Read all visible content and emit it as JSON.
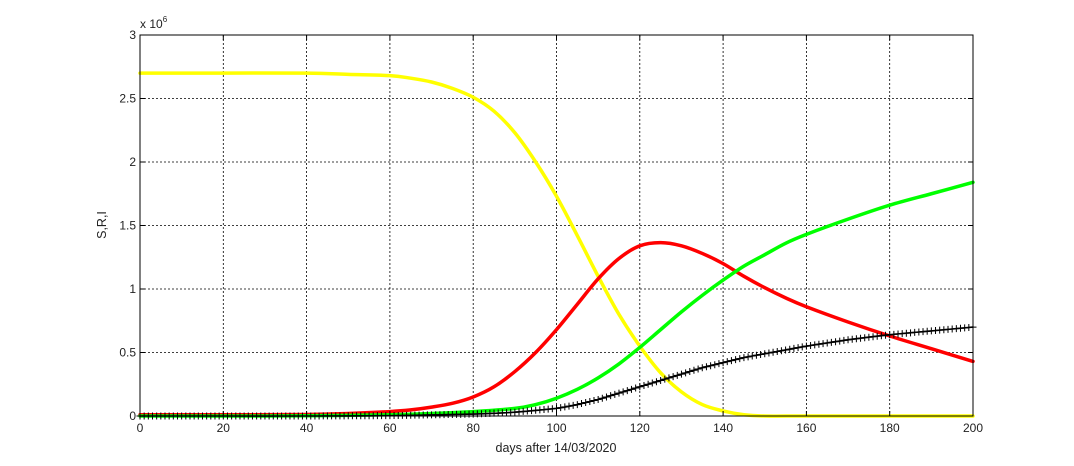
{
  "chart_data": {
    "type": "line",
    "xlabel": "days after 14/03/2020",
    "ylabel": "S,R,I",
    "y_multiplier_label": "x 10",
    "y_multiplier_exp": "6",
    "xlim": [
      0,
      200
    ],
    "ylim": [
      0,
      3000000
    ],
    "grid": true,
    "x_ticks": [
      0,
      20,
      40,
      60,
      80,
      100,
      120,
      140,
      160,
      180,
      200
    ],
    "x_tick_labels": [
      "0",
      "20",
      "40",
      "60",
      "80",
      "100",
      "120",
      "140",
      "160",
      "180",
      "200"
    ],
    "y_ticks": [
      0,
      500000,
      1000000,
      1500000,
      2000000,
      2500000,
      3000000
    ],
    "y_tick_labels": [
      "0",
      "0.5",
      "1",
      "1.5",
      "2",
      "2.5",
      "3"
    ],
    "series": [
      {
        "color": "#ffff00",
        "marker": "none",
        "x": [
          0,
          20,
          40,
          50,
          60,
          65,
          70,
          75,
          80,
          85,
          90,
          95,
          100,
          105,
          110,
          115,
          120,
          125,
          130,
          135,
          140,
          145,
          150,
          160,
          180,
          200
        ],
        "y": [
          2700000,
          2700000,
          2700000,
          2690000,
          2680000,
          2660000,
          2630000,
          2580000,
          2510000,
          2400000,
          2230000,
          2000000,
          1730000,
          1420000,
          1100000,
          800000,
          550000,
          340000,
          190000,
          90000,
          40000,
          10000,
          0,
          0,
          0,
          0
        ]
      },
      {
        "color": "#ff0000",
        "marker": "none",
        "x": [
          0,
          20,
          40,
          50,
          60,
          65,
          70,
          75,
          80,
          85,
          90,
          95,
          100,
          105,
          110,
          115,
          120,
          125,
          130,
          135,
          140,
          145,
          150,
          155,
          160,
          170,
          180,
          190,
          200
        ],
        "y": [
          10000,
          10000,
          12000,
          20000,
          35000,
          48000,
          70000,
          100000,
          150000,
          230000,
          350000,
          500000,
          680000,
          880000,
          1080000,
          1240000,
          1340000,
          1365000,
          1340000,
          1280000,
          1200000,
          1100000,
          1010000,
          930000,
          860000,
          740000,
          630000,
          530000,
          430000
        ]
      },
      {
        "color": "#00ff00",
        "marker": "none",
        "x": [
          0,
          20,
          40,
          60,
          70,
          80,
          90,
          95,
          100,
          105,
          110,
          115,
          120,
          125,
          130,
          135,
          140,
          145,
          150,
          155,
          160,
          170,
          180,
          190,
          200
        ],
        "y": [
          0,
          0,
          2000,
          10000,
          20000,
          35000,
          60000,
          90000,
          140000,
          210000,
          300000,
          410000,
          540000,
          680000,
          820000,
          950000,
          1070000,
          1180000,
          1270000,
          1360000,
          1430000,
          1550000,
          1660000,
          1750000,
          1840000
        ]
      },
      {
        "color": "#000000",
        "marker": "plus",
        "x": [
          0,
          20,
          40,
          60,
          80,
          90,
          100,
          105,
          110,
          115,
          120,
          125,
          130,
          135,
          140,
          145,
          150,
          155,
          160,
          170,
          180,
          190,
          200
        ],
        "y": [
          0,
          0,
          0,
          3000,
          15000,
          30000,
          60000,
          90000,
          130000,
          180000,
          230000,
          280000,
          330000,
          380000,
          420000,
          460000,
          490000,
          520000,
          550000,
          600000,
          640000,
          670000,
          700000
        ]
      }
    ]
  }
}
